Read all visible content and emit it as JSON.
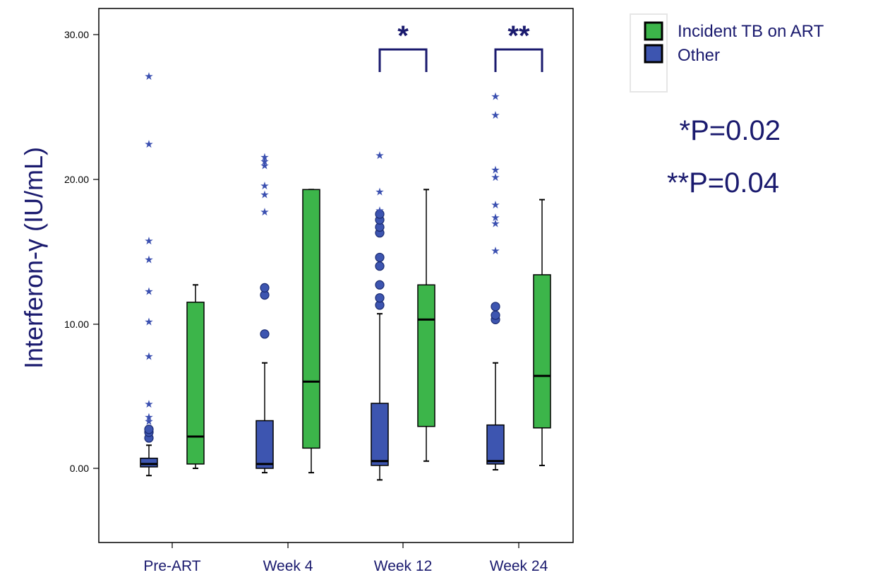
{
  "chart_data": {
    "type": "boxplot",
    "ylabel": "Interferon-γ (IU/mL)",
    "ylim": [
      -5,
      31
    ],
    "yticks": [
      "0.00",
      "10.00",
      "20.00",
      "30.00"
    ],
    "categories": [
      "Pre-ART",
      "Week 4",
      "Week 12",
      "Week 24"
    ],
    "series": [
      {
        "name": "Other",
        "color": "#3d55b0",
        "boxes": [
          {
            "whisker_low": -0.5,
            "q1": 0.1,
            "median": 0.3,
            "q3": 0.7,
            "whisker_high": 1.6,
            "outliers_circle": [
              2.1,
              2.5,
              2.7
            ],
            "outliers_extreme": [
              3.3,
              3.6,
              4.5,
              7.8,
              10.2,
              12.3,
              14.5,
              15.8,
              22.5,
              27.2
            ]
          },
          {
            "whisker_low": -0.3,
            "q1": 0.0,
            "median": 0.3,
            "q3": 3.3,
            "whisker_high": 7.3,
            "outliers_circle": [
              9.3,
              12.0,
              12.5
            ],
            "outliers_extreme": [
              17.8,
              19.0,
              19.6,
              21.0,
              21.3,
              21.6
            ]
          },
          {
            "whisker_low": -0.8,
            "q1": 0.2,
            "median": 0.5,
            "q3": 4.5,
            "whisker_high": 10.7,
            "outliers_circle": [
              11.3,
              11.8,
              12.7,
              14.0,
              14.6,
              16.3,
              16.7,
              17.2,
              17.6
            ],
            "outliers_extreme": [
              17.9,
              19.2,
              21.7
            ]
          },
          {
            "whisker_low": -0.1,
            "q1": 0.3,
            "median": 0.5,
            "q3": 3.0,
            "whisker_high": 7.3,
            "outliers_circle": [
              10.3,
              10.6,
              11.2
            ],
            "outliers_extreme": [
              15.1,
              17.0,
              17.4,
              18.3,
              20.2,
              20.7,
              24.5,
              25.8
            ]
          }
        ]
      },
      {
        "name": "Incident TB on ART",
        "color": "#3cb54a",
        "boxes": [
          {
            "whisker_low": 0.0,
            "q1": 0.3,
            "median": 2.2,
            "q3": 11.5,
            "whisker_high": 12.7
          },
          {
            "whisker_low": -0.3,
            "q1": 1.4,
            "median": 6.0,
            "q3": 19.3,
            "whisker_high": 19.3
          },
          {
            "whisker_low": 0.5,
            "q1": 2.9,
            "median": 10.3,
            "q3": 12.7,
            "whisker_high": 19.3
          },
          {
            "whisker_low": 0.2,
            "q1": 2.8,
            "median": 6.4,
            "q3": 13.4,
            "whisker_high": 18.6
          }
        ]
      }
    ],
    "significance": [
      {
        "category_index": 2,
        "label": "*"
      },
      {
        "category_index": 3,
        "label": "**"
      }
    ],
    "legend": {
      "position": "top-right",
      "items": [
        "Incident TB on ART",
        "Other"
      ]
    },
    "annotations": [
      "*P=0.02",
      "**P=0.04"
    ]
  }
}
